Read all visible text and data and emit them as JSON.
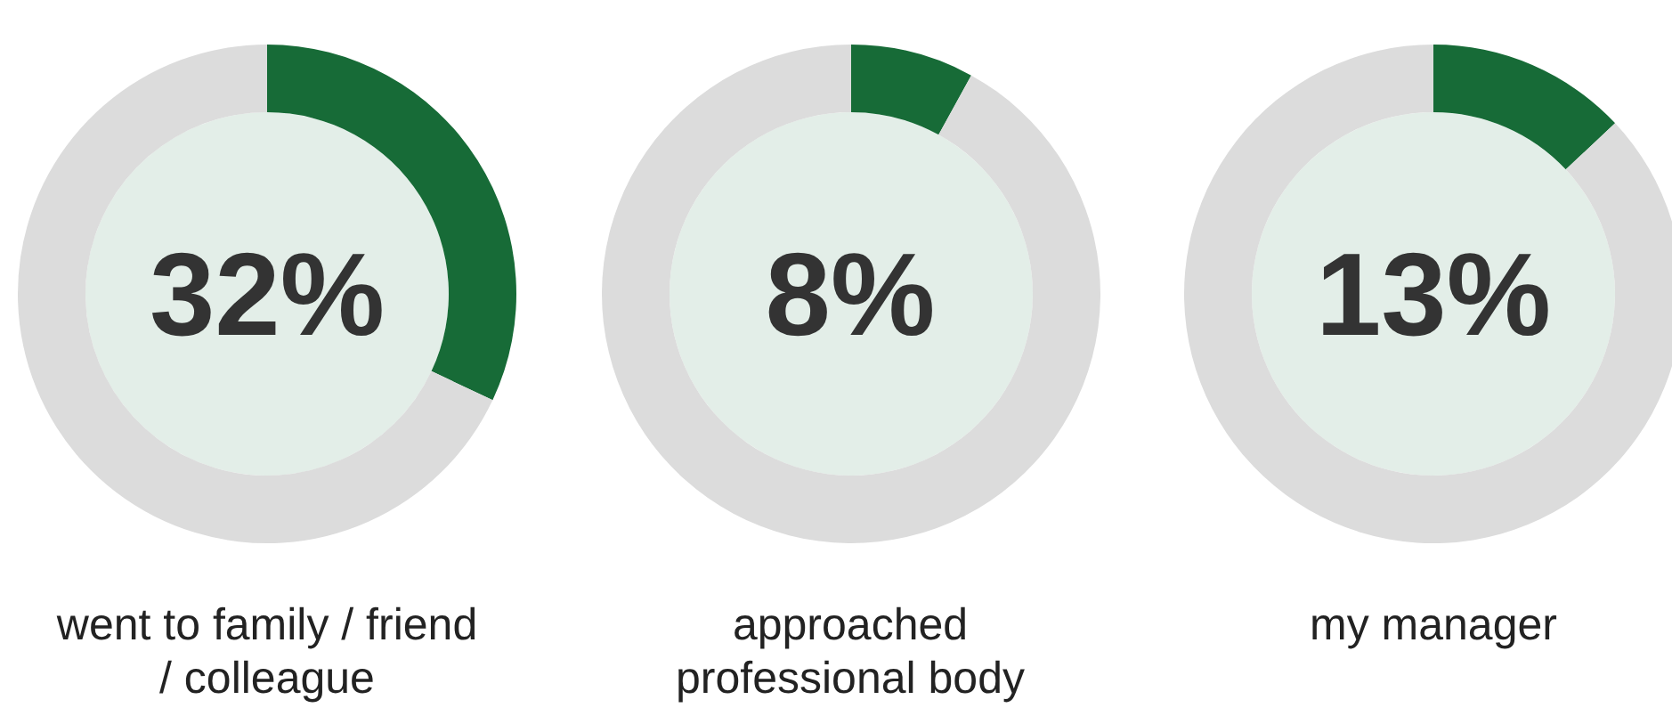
{
  "chart_data": [
    {
      "type": "donut",
      "title": "went to family / friend / colleague",
      "categories": [
        null,
        null
      ],
      "values": [
        32,
        68
      ],
      "colors": [
        "#176b37",
        "#dcdcdc"
      ],
      "annotations": [
        "32%"
      ]
    },
    {
      "type": "donut",
      "title": "approached professional body",
      "categories": [
        null,
        null
      ],
      "values": [
        8,
        92
      ],
      "colors": [
        "#176b37",
        "#dcdcdc"
      ],
      "annotations": [
        "8%"
      ]
    },
    {
      "type": "donut",
      "title": "my manager",
      "categories": [
        null,
        null
      ],
      "values": [
        13,
        87
      ],
      "colors": [
        "#176b37",
        "#dcdcdc"
      ],
      "annotations": [
        "13%"
      ]
    }
  ]
}
